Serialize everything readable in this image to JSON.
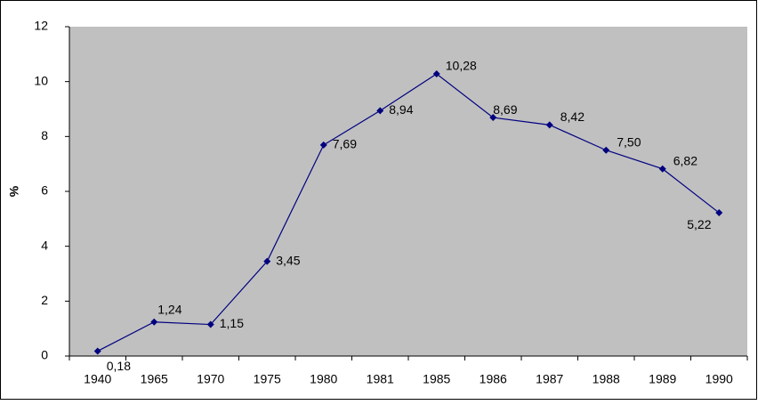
{
  "chart_data": {
    "type": "line",
    "y_label": "%",
    "categories": [
      "1940",
      "1965",
      "1970",
      "1975",
      "1980",
      "1981",
      "1985",
      "1986",
      "1987",
      "1988",
      "1989",
      "1990"
    ],
    "series": [
      {
        "name": "%",
        "color": "#000080",
        "values": [
          0.18,
          1.24,
          1.15,
          3.45,
          7.69,
          8.94,
          10.28,
          8.69,
          8.42,
          7.5,
          6.82,
          5.22
        ],
        "value_labels": [
          "0,18",
          "1,24",
          "1,15",
          "3,45",
          "7,69",
          "8,94",
          "10,28",
          "8,69",
          "8,42",
          "7,50",
          "6,82",
          "5,22"
        ]
      }
    ],
    "ylim": [
      0,
      12
    ],
    "yticks": [
      0,
      2,
      4,
      6,
      8,
      10,
      12
    ],
    "plot_background": "#c0c0c0"
  }
}
